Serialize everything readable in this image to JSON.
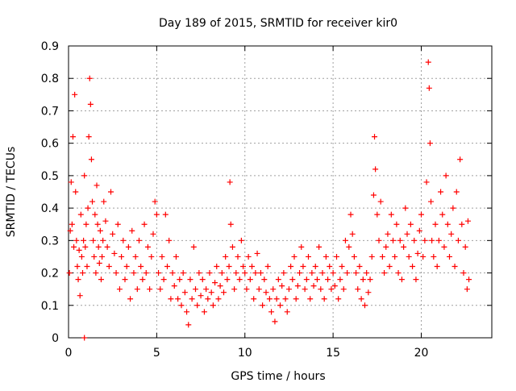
{
  "chart_data": {
    "type": "scatter",
    "title": "Day 189 of 2015, SRMTID for receiver kir0",
    "xlabel": "GPS time / hours",
    "ylabel": "SRMTID / TECUs",
    "xlim": [
      0,
      24
    ],
    "ylim": [
      0,
      0.9
    ],
    "xticks": [
      0,
      5,
      10,
      15,
      20
    ],
    "xtick_labels": [
      "0",
      "5",
      "10",
      "15",
      "20"
    ],
    "yticks": [
      0,
      0.1,
      0.2,
      0.3,
      0.4,
      0.5,
      0.6,
      0.7,
      0.8,
      0.9
    ],
    "ytick_labels": [
      "0",
      "0.1",
      "0.2",
      "0.3",
      "0.4",
      "0.5",
      "0.6",
      "0.7",
      "0.8",
      "0.9"
    ],
    "grid": true,
    "marker": "+",
    "color": "#ff0000",
    "series": [
      {
        "name": "SRMTID",
        "points": [
          [
            0.05,
            0.2
          ],
          [
            0.1,
            0.33
          ],
          [
            0.15,
            0.48
          ],
          [
            0.2,
            0.35
          ],
          [
            0.25,
            0.62
          ],
          [
            0.3,
            0.28
          ],
          [
            0.35,
            0.75
          ],
          [
            0.4,
            0.45
          ],
          [
            0.45,
            0.3
          ],
          [
            0.5,
            0.22
          ],
          [
            0.55,
            0.18
          ],
          [
            0.6,
            0.27
          ],
          [
            0.65,
            0.13
          ],
          [
            0.7,
            0.38
          ],
          [
            0.75,
            0.25
          ],
          [
            0.8,
            0.2
          ],
          [
            0.85,
            0.3
          ],
          [
            0.9,
            0.5
          ],
          [
            0.95,
            0.28
          ],
          [
            1.0,
            0.35
          ],
          [
            1.05,
            0.22
          ],
          [
            1.1,
            0.4
          ],
          [
            1.15,
            0.62
          ],
          [
            1.2,
            0.8
          ],
          [
            1.25,
            0.72
          ],
          [
            1.3,
            0.55
          ],
          [
            1.35,
            0.42
          ],
          [
            1.4,
            0.3
          ],
          [
            1.45,
            0.25
          ],
          [
            1.5,
            0.38
          ],
          [
            1.55,
            0.2
          ],
          [
            1.6,
            0.47
          ],
          [
            1.65,
            0.35
          ],
          [
            1.7,
            0.28
          ],
          [
            1.75,
            0.23
          ],
          [
            1.8,
            0.33
          ],
          [
            1.85,
            0.18
          ],
          [
            1.9,
            0.25
          ],
          [
            1.95,
            0.3
          ],
          [
            2.0,
            0.42
          ],
          [
            2.1,
            0.36
          ],
          [
            2.2,
            0.28
          ],
          [
            2.3,
            0.22
          ],
          [
            2.4,
            0.45
          ],
          [
            2.5,
            0.32
          ],
          [
            2.6,
            0.26
          ],
          [
            2.7,
            0.2
          ],
          [
            2.8,
            0.35
          ],
          [
            2.9,
            0.15
          ],
          [
            3.0,
            0.25
          ],
          [
            3.1,
            0.3
          ],
          [
            3.2,
            0.18
          ],
          [
            3.3,
            0.22
          ],
          [
            3.4,
            0.28
          ],
          [
            3.5,
            0.12
          ],
          [
            3.6,
            0.33
          ],
          [
            3.7,
            0.2
          ],
          [
            3.8,
            0.25
          ],
          [
            3.9,
            0.15
          ],
          [
            4.0,
            0.3
          ],
          [
            4.1,
            0.22
          ],
          [
            4.2,
            0.18
          ],
          [
            4.3,
            0.35
          ],
          [
            4.4,
            0.2
          ],
          [
            4.5,
            0.28
          ],
          [
            4.6,
            0.15
          ],
          [
            4.7,
            0.25
          ],
          [
            4.8,
            0.32
          ],
          [
            4.9,
            0.42
          ],
          [
            5.0,
            0.38
          ],
          [
            5.1,
            0.2
          ],
          [
            5.2,
            0.15
          ],
          [
            5.3,
            0.25
          ],
          [
            5.4,
            0.18
          ],
          [
            5.5,
            0.38
          ],
          [
            5.6,
            0.22
          ],
          [
            5.7,
            0.3
          ],
          [
            5.8,
            0.12
          ],
          [
            5.9,
            0.2
          ],
          [
            6.0,
            0.16
          ],
          [
            6.1,
            0.25
          ],
          [
            6.2,
            0.12
          ],
          [
            6.3,
            0.18
          ],
          [
            6.4,
            0.1
          ],
          [
            6.5,
            0.2
          ],
          [
            6.6,
            0.14
          ],
          [
            6.7,
            0.08
          ],
          [
            6.8,
            0.04
          ],
          [
            6.9,
            0.18
          ],
          [
            7.0,
            0.12
          ],
          [
            7.1,
            0.28
          ],
          [
            7.2,
            0.15
          ],
          [
            7.3,
            0.1
          ],
          [
            7.4,
            0.2
          ],
          [
            7.5,
            0.13
          ],
          [
            7.6,
            0.18
          ],
          [
            7.7,
            0.08
          ],
          [
            7.8,
            0.15
          ],
          [
            7.9,
            0.12
          ],
          [
            8.0,
            0.2
          ],
          [
            8.1,
            0.14
          ],
          [
            8.2,
            0.1
          ],
          [
            8.3,
            0.17
          ],
          [
            8.4,
            0.22
          ],
          [
            8.5,
            0.12
          ],
          [
            8.6,
            0.16
          ],
          [
            8.7,
            0.2
          ],
          [
            8.8,
            0.14
          ],
          [
            8.9,
            0.25
          ],
          [
            9.0,
            0.18
          ],
          [
            9.1,
            0.22
          ],
          [
            9.15,
            0.48
          ],
          [
            9.2,
            0.35
          ],
          [
            9.3,
            0.28
          ],
          [
            9.4,
            0.15
          ],
          [
            9.5,
            0.2
          ],
          [
            9.6,
            0.25
          ],
          [
            9.7,
            0.18
          ],
          [
            9.8,
            0.3
          ],
          [
            9.9,
            0.22
          ],
          [
            10.0,
            0.2
          ],
          [
            10.1,
            0.15
          ],
          [
            10.2,
            0.25
          ],
          [
            10.3,
            0.18
          ],
          [
            10.4,
            0.22
          ],
          [
            10.5,
            0.12
          ],
          [
            10.6,
            0.2
          ],
          [
            10.7,
            0.26
          ],
          [
            10.8,
            0.15
          ],
          [
            10.9,
            0.2
          ],
          [
            11.0,
            0.1
          ],
          [
            11.1,
            0.18
          ],
          [
            11.2,
            0.14
          ],
          [
            11.3,
            0.22
          ],
          [
            11.4,
            0.12
          ],
          [
            11.5,
            0.08
          ],
          [
            11.6,
            0.15
          ],
          [
            11.7,
            0.05
          ],
          [
            11.8,
            0.12
          ],
          [
            11.9,
            0.18
          ],
          [
            12.0,
            0.1
          ],
          [
            12.1,
            0.16
          ],
          [
            12.2,
            0.2
          ],
          [
            12.3,
            0.12
          ],
          [
            12.4,
            0.08
          ],
          [
            12.5,
            0.15
          ],
          [
            12.6,
            0.22
          ],
          [
            12.7,
            0.18
          ],
          [
            12.8,
            0.25
          ],
          [
            12.9,
            0.12
          ],
          [
            13.0,
            0.16
          ],
          [
            13.1,
            0.2
          ],
          [
            13.2,
            0.28
          ],
          [
            13.3,
            0.22
          ],
          [
            13.4,
            0.15
          ],
          [
            13.5,
            0.18
          ],
          [
            13.6,
            0.25
          ],
          [
            13.7,
            0.12
          ],
          [
            13.8,
            0.2
          ],
          [
            13.9,
            0.16
          ],
          [
            14.0,
            0.22
          ],
          [
            14.1,
            0.18
          ],
          [
            14.2,
            0.28
          ],
          [
            14.3,
            0.15
          ],
          [
            14.4,
            0.2
          ],
          [
            14.5,
            0.12
          ],
          [
            14.6,
            0.25
          ],
          [
            14.7,
            0.18
          ],
          [
            14.8,
            0.22
          ],
          [
            14.9,
            0.15
          ],
          [
            15.0,
            0.2
          ],
          [
            15.1,
            0.16
          ],
          [
            15.2,
            0.25
          ],
          [
            15.3,
            0.12
          ],
          [
            15.4,
            0.18
          ],
          [
            15.5,
            0.22
          ],
          [
            15.6,
            0.15
          ],
          [
            15.7,
            0.3
          ],
          [
            15.8,
            0.2
          ],
          [
            15.9,
            0.28
          ],
          [
            16.0,
            0.38
          ],
          [
            16.1,
            0.32
          ],
          [
            16.2,
            0.25
          ],
          [
            16.3,
            0.2
          ],
          [
            16.4,
            0.15
          ],
          [
            16.5,
            0.22
          ],
          [
            16.6,
            0.12
          ],
          [
            16.7,
            0.18
          ],
          [
            16.8,
            0.1
          ],
          [
            16.9,
            0.2
          ],
          [
            17.0,
            0.14
          ],
          [
            17.1,
            0.18
          ],
          [
            17.2,
            0.25
          ],
          [
            17.3,
            0.44
          ],
          [
            17.35,
            0.62
          ],
          [
            17.4,
            0.52
          ],
          [
            17.5,
            0.38
          ],
          [
            17.6,
            0.3
          ],
          [
            17.7,
            0.42
          ],
          [
            17.8,
            0.25
          ],
          [
            17.9,
            0.2
          ],
          [
            18.0,
            0.28
          ],
          [
            18.1,
            0.32
          ],
          [
            18.2,
            0.22
          ],
          [
            18.3,
            0.38
          ],
          [
            18.4,
            0.3
          ],
          [
            18.5,
            0.25
          ],
          [
            18.6,
            0.35
          ],
          [
            18.7,
            0.2
          ],
          [
            18.8,
            0.3
          ],
          [
            18.9,
            0.18
          ],
          [
            19.0,
            0.28
          ],
          [
            19.1,
            0.4
          ],
          [
            19.2,
            0.32
          ],
          [
            19.3,
            0.25
          ],
          [
            19.4,
            0.35
          ],
          [
            19.5,
            0.22
          ],
          [
            19.6,
            0.3
          ],
          [
            19.7,
            0.18
          ],
          [
            19.8,
            0.26
          ],
          [
            19.9,
            0.33
          ],
          [
            20.0,
            0.38
          ],
          [
            20.1,
            0.25
          ],
          [
            20.2,
            0.3
          ],
          [
            20.3,
            0.48
          ],
          [
            20.4,
            0.85
          ],
          [
            20.45,
            0.77
          ],
          [
            20.5,
            0.6
          ],
          [
            20.55,
            0.42
          ],
          [
            20.6,
            0.3
          ],
          [
            20.7,
            0.25
          ],
          [
            20.8,
            0.35
          ],
          [
            20.9,
            0.22
          ],
          [
            21.0,
            0.3
          ],
          [
            21.1,
            0.45
          ],
          [
            21.2,
            0.38
          ],
          [
            21.3,
            0.28
          ],
          [
            21.4,
            0.5
          ],
          [
            21.5,
            0.35
          ],
          [
            21.6,
            0.25
          ],
          [
            21.7,
            0.32
          ],
          [
            21.8,
            0.4
          ],
          [
            21.9,
            0.22
          ],
          [
            22.0,
            0.45
          ],
          [
            22.1,
            0.3
          ],
          [
            22.2,
            0.55
          ],
          [
            22.3,
            0.35
          ],
          [
            22.4,
            0.2
          ],
          [
            22.5,
            0.28
          ],
          [
            22.6,
            0.15
          ],
          [
            22.65,
            0.36
          ],
          [
            22.7,
            0.18
          ],
          [
            0.9,
            0.0
          ]
        ]
      }
    ]
  }
}
